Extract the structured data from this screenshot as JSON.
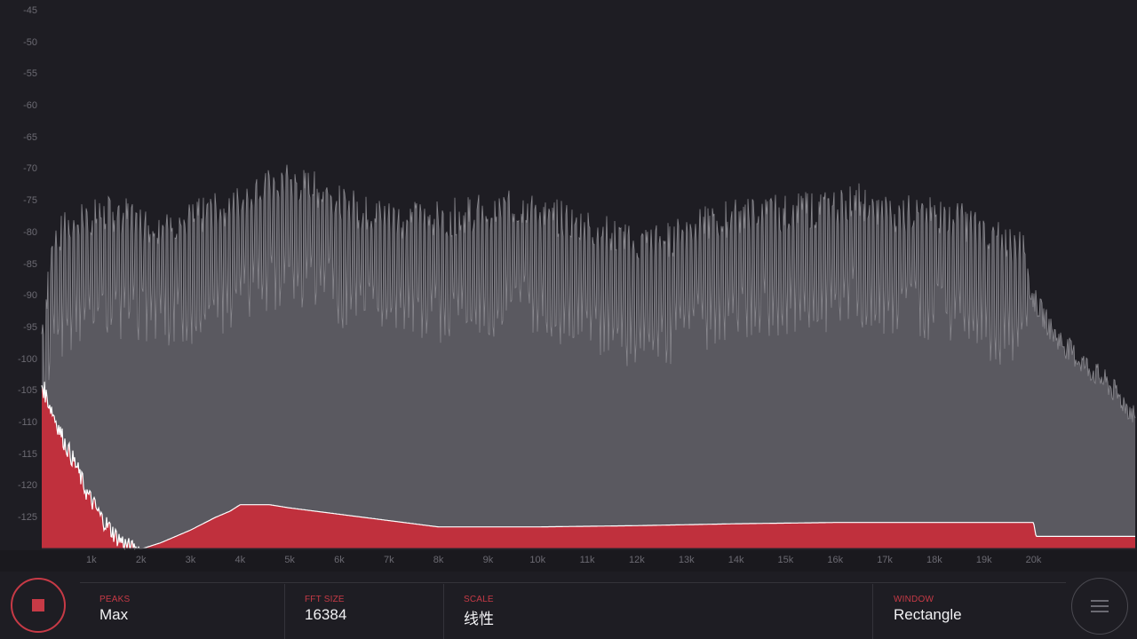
{
  "chart_data": {
    "type": "area",
    "y_ticks": [
      "-45",
      "-50",
      "-55",
      "-60",
      "-65",
      "-70",
      "-75",
      "-80",
      "-85",
      "-90",
      "-95",
      "-100",
      "-105",
      "-110",
      "-115",
      "-120",
      "-125"
    ],
    "x_ticks": [
      "1k",
      "2k",
      "3k",
      "4k",
      "5k",
      "6k",
      "7k",
      "8k",
      "9k",
      "10k",
      "11k",
      "12k",
      "13k",
      "14k",
      "15k",
      "16k",
      "17k",
      "18k",
      "19k",
      "20k"
    ],
    "ylim": [
      -130,
      -44
    ],
    "xlim": [
      0,
      22050
    ],
    "series": [
      {
        "role": "peak hold",
        "color": "#5a5960",
        "x": [
          0,
          250,
          700,
          1500,
          2200,
          3000,
          3800,
          4500,
          5000,
          5800,
          6500,
          7300,
          8000,
          8700,
          9800,
          10500,
          11300,
          12000,
          12700,
          13300,
          14200,
          15000,
          16000,
          16500,
          17000,
          17800,
          18500,
          19000,
          19900,
          20400,
          20900,
          21500,
          22050
        ],
        "y": [
          -102,
          -87,
          -84,
          -83,
          -85,
          -84,
          -82,
          -79,
          -78,
          -80,
          -83,
          -84,
          -84,
          -83,
          -82,
          -84,
          -86,
          -88,
          -87,
          -85,
          -83,
          -83,
          -82,
          -81,
          -83,
          -83,
          -84,
          -86,
          -89,
          -96,
          -100,
          -104,
          -109
        ]
      },
      {
        "role": "current",
        "color": "#c0303d",
        "x": [
          0,
          100,
          250,
          450,
          700,
          900,
          1200,
          1500,
          1800,
          2000,
          2400,
          3000,
          3500,
          3800,
          4000,
          4300,
          4600,
          5000,
          5500,
          6000,
          6500,
          7000,
          8000,
          9000,
          10000,
          12000,
          14000,
          16000,
          18000,
          19500,
          20000,
          20050,
          21000,
          22050
        ],
        "y": [
          -104,
          -106,
          -109,
          -113,
          -117,
          -121,
          -125,
          -128,
          -130,
          -130,
          -129,
          -127,
          -125,
          -124,
          -123,
          -123,
          -123,
          -123.5,
          -124,
          -124.5,
          -125,
          -125.5,
          -126.5,
          -126.5,
          -126.5,
          -126.3,
          -126.0,
          -125.8,
          -125.8,
          -125.8,
          -125.8,
          -128,
          -128,
          -128
        ]
      }
    ]
  },
  "footer": {
    "peaks_label": "PEAKS",
    "peaks_value": "Max",
    "fft_label": "FFT SIZE",
    "fft_value": "16384",
    "scale_label": "SCALE",
    "scale_value": "线性",
    "window_label": "WINDOW",
    "window_value": "Rectangle"
  },
  "icons": {
    "stop": "stop-icon",
    "menu": "menu-icon"
  },
  "colors": {
    "accent": "#c73a46",
    "peak_fill": "#5a5960",
    "background": "#1e1d23"
  }
}
